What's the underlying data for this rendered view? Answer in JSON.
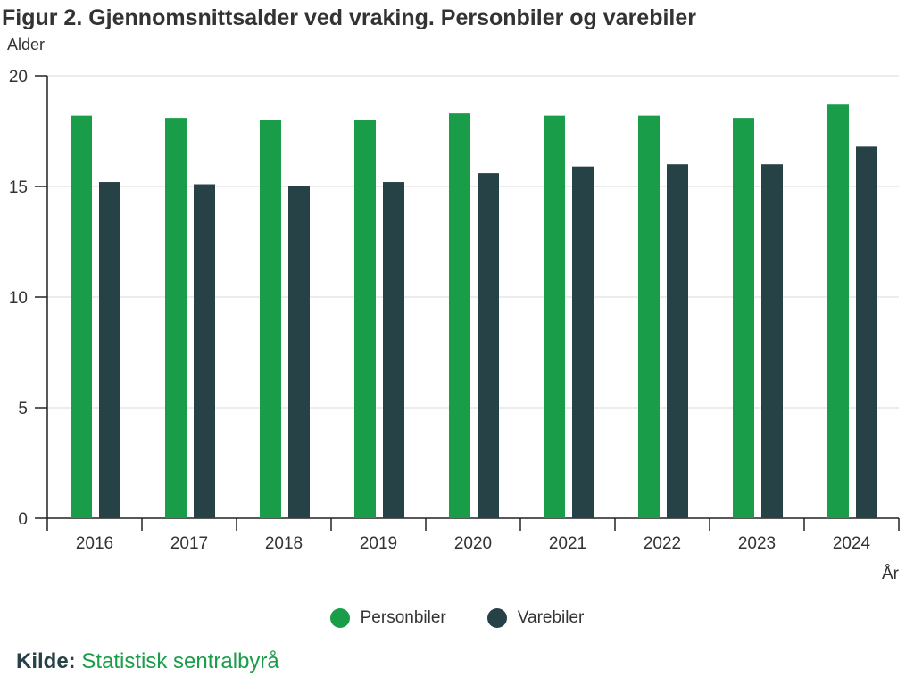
{
  "colors": {
    "personbiler": "#1a9d49",
    "varebiler": "#274247",
    "axis": "#222222",
    "grid": "#d9d9d9"
  },
  "source": {
    "label": "Kilde:",
    "name": "Statistisk sentralbyrå"
  },
  "chart_data": {
    "type": "bar",
    "title": "Figur 2. Gjennomsnittsalder ved vraking. Personbiler og varebiler",
    "ylabel": "Alder",
    "xlabel": "År",
    "categories": [
      "2016",
      "2017",
      "2018",
      "2019",
      "2020",
      "2021",
      "2022",
      "2023",
      "2024"
    ],
    "series": [
      {
        "name": "Personbiler",
        "values": [
          18.2,
          18.1,
          18.0,
          18.0,
          18.3,
          18.2,
          18.2,
          18.1,
          18.7
        ]
      },
      {
        "name": "Varebiler",
        "values": [
          15.2,
          15.1,
          15.0,
          15.2,
          15.6,
          15.9,
          16.0,
          16.0,
          16.8
        ]
      }
    ],
    "ylim": [
      0,
      20
    ],
    "yticks": [
      0,
      5,
      10,
      15,
      20
    ],
    "grid": true,
    "legend_position": "bottom"
  }
}
